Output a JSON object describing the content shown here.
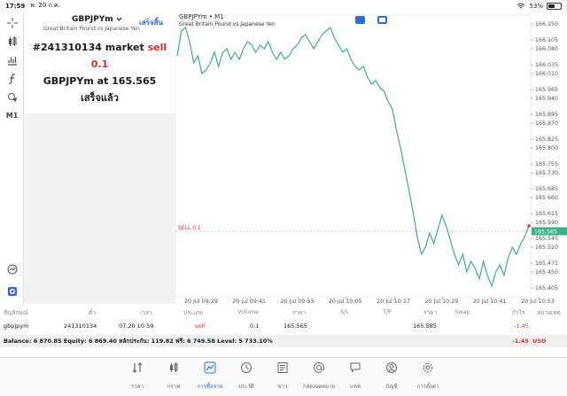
{
  "status_bar": {
    "time": "17:59",
    "date": "พ. 20 ก.ค.",
    "battery": "53%",
    "battery_fraction": 0.53
  },
  "toolbar": {
    "timeframe": "M1",
    "icons": [
      "crosshair-icon",
      "candles-icon",
      "indicators-icon",
      "function-icon",
      "objects-icon",
      "timeframe-icon",
      "search-icon",
      "sync-icon"
    ]
  },
  "symbol": {
    "name": "GBPJPYm",
    "description": "Great Britain Pound vs Japanese Yen",
    "done_label": "เสร็จสิ้น"
  },
  "notice": {
    "order_prefix": "#241310134 market",
    "side": "sell 0.1",
    "symbol_at": "GBPJPYm at",
    "price": "165.565",
    "status": "เสร็จแล้ว"
  },
  "chart": {
    "title": "GBPJPYm • M1",
    "subtitle": "Great Britain Pound vs Japanese Yen",
    "sell_line_label": "SELL 0.1",
    "current_price_label": "165.565",
    "colors": {
      "line": "#3fae84",
      "price_tag": "#3fae84",
      "sell_line": "#d62f2f"
    }
  },
  "chart_data": {
    "type": "line",
    "y_ticks": [
      "166.150",
      "166.105",
      "166.080",
      "166.035",
      "166.010",
      "165.965",
      "165.940",
      "165.895",
      "165.870",
      "165.825",
      "165.800",
      "165.755",
      "165.730",
      "165.685",
      "165.660",
      "165.615",
      "165.590",
      "165.545",
      "165.520",
      "165.475",
      "165.450",
      "165.405"
    ],
    "y_tick_values": [
      166.15,
      166.105,
      166.08,
      166.035,
      166.01,
      165.965,
      165.94,
      165.895,
      165.87,
      165.825,
      165.8,
      165.755,
      165.73,
      165.685,
      165.66,
      165.615,
      165.59,
      165.545,
      165.52,
      165.475,
      165.45,
      165.405
    ],
    "ylim": [
      165.38,
      166.175
    ],
    "x_tick_labels": [
      "20 Jul 09:29",
      "20 Jul 09:41",
      "20 Jul 09:53",
      "20 Jul 10:05",
      "20 Jul 10:17",
      "20 Jul 10:29",
      "20 Jul 10:41",
      "20 Jul 10:53"
    ],
    "current_price": 165.565,
    "values": [
      166.06,
      166.13,
      166.14,
      166.1,
      166.04,
      166.06,
      166.01,
      166.02,
      166.04,
      166.07,
      166.03,
      166.07,
      166.08,
      166.05,
      166.07,
      166.05,
      166.08,
      166.1,
      166.09,
      166.07,
      166.09,
      166.08,
      166.1,
      166.07,
      166.05,
      166.07,
      166.05,
      166.06,
      166.08,
      166.09,
      166.11,
      166.12,
      166.1,
      166.08,
      166.1,
      166.12,
      166.13,
      166.14,
      166.11,
      166.09,
      166.07,
      166.08,
      166.05,
      166.03,
      166.02,
      166.03,
      166.0,
      165.98,
      165.99,
      165.97,
      165.96,
      165.93,
      165.91,
      165.85,
      165.8,
      165.74,
      165.68,
      165.62,
      165.55,
      165.5,
      165.52,
      165.56,
      165.53,
      165.57,
      165.61,
      165.58,
      165.54,
      165.5,
      165.47,
      165.5,
      165.45,
      165.48,
      165.46,
      165.43,
      165.48,
      165.44,
      165.41,
      165.45,
      165.47,
      165.44,
      165.49,
      165.52,
      165.5,
      165.53,
      165.55,
      165.58
    ]
  },
  "table": {
    "headers": {
      "symbol": "สัญลักษณ์",
      "ticket": "ตั๋ว",
      "time": "เวลา",
      "type": "ประเภท",
      "volume": "Volume",
      "price": "ราคา",
      "sl": "S/L",
      "tp": "T/P",
      "cur_price": "ราคา",
      "swap": "Swap",
      "profit": "กำไร",
      "comment": "หมายเหตุ"
    },
    "row": {
      "symbol": "gbpjpym",
      "ticket": "241310134",
      "time": "07.20 10:59",
      "type": "sell",
      "volume": "0.1",
      "price": "165.565",
      "cur_price": "165.585",
      "profit": "-1.45"
    },
    "balance": "Balance: 6 870.85 Equity: 6 869.40 หลักประกัน: 119.82 ฟรี: 6 749.58 Level: 5 733.10%",
    "balance_profit": "-1.45",
    "currency": "USD"
  },
  "tabs": [
    {
      "label": "ราคา",
      "icon": "quotes-icon"
    },
    {
      "label": "กราฟ",
      "icon": "chart-icon"
    },
    {
      "label": "การซื้อขาย",
      "icon": "trade-icon",
      "active": true
    },
    {
      "label": "ประวัติ",
      "icon": "history-icon"
    },
    {
      "label": "ข่าว",
      "icon": "news-icon"
    },
    {
      "label": "กล่องจดหมาย",
      "icon": "mailbox-icon"
    },
    {
      "label": "แชท",
      "icon": "chat-icon"
    },
    {
      "label": "บัญชี",
      "icon": "account-icon"
    },
    {
      "label": "การตั้งค่า",
      "icon": "settings-icon"
    }
  ]
}
